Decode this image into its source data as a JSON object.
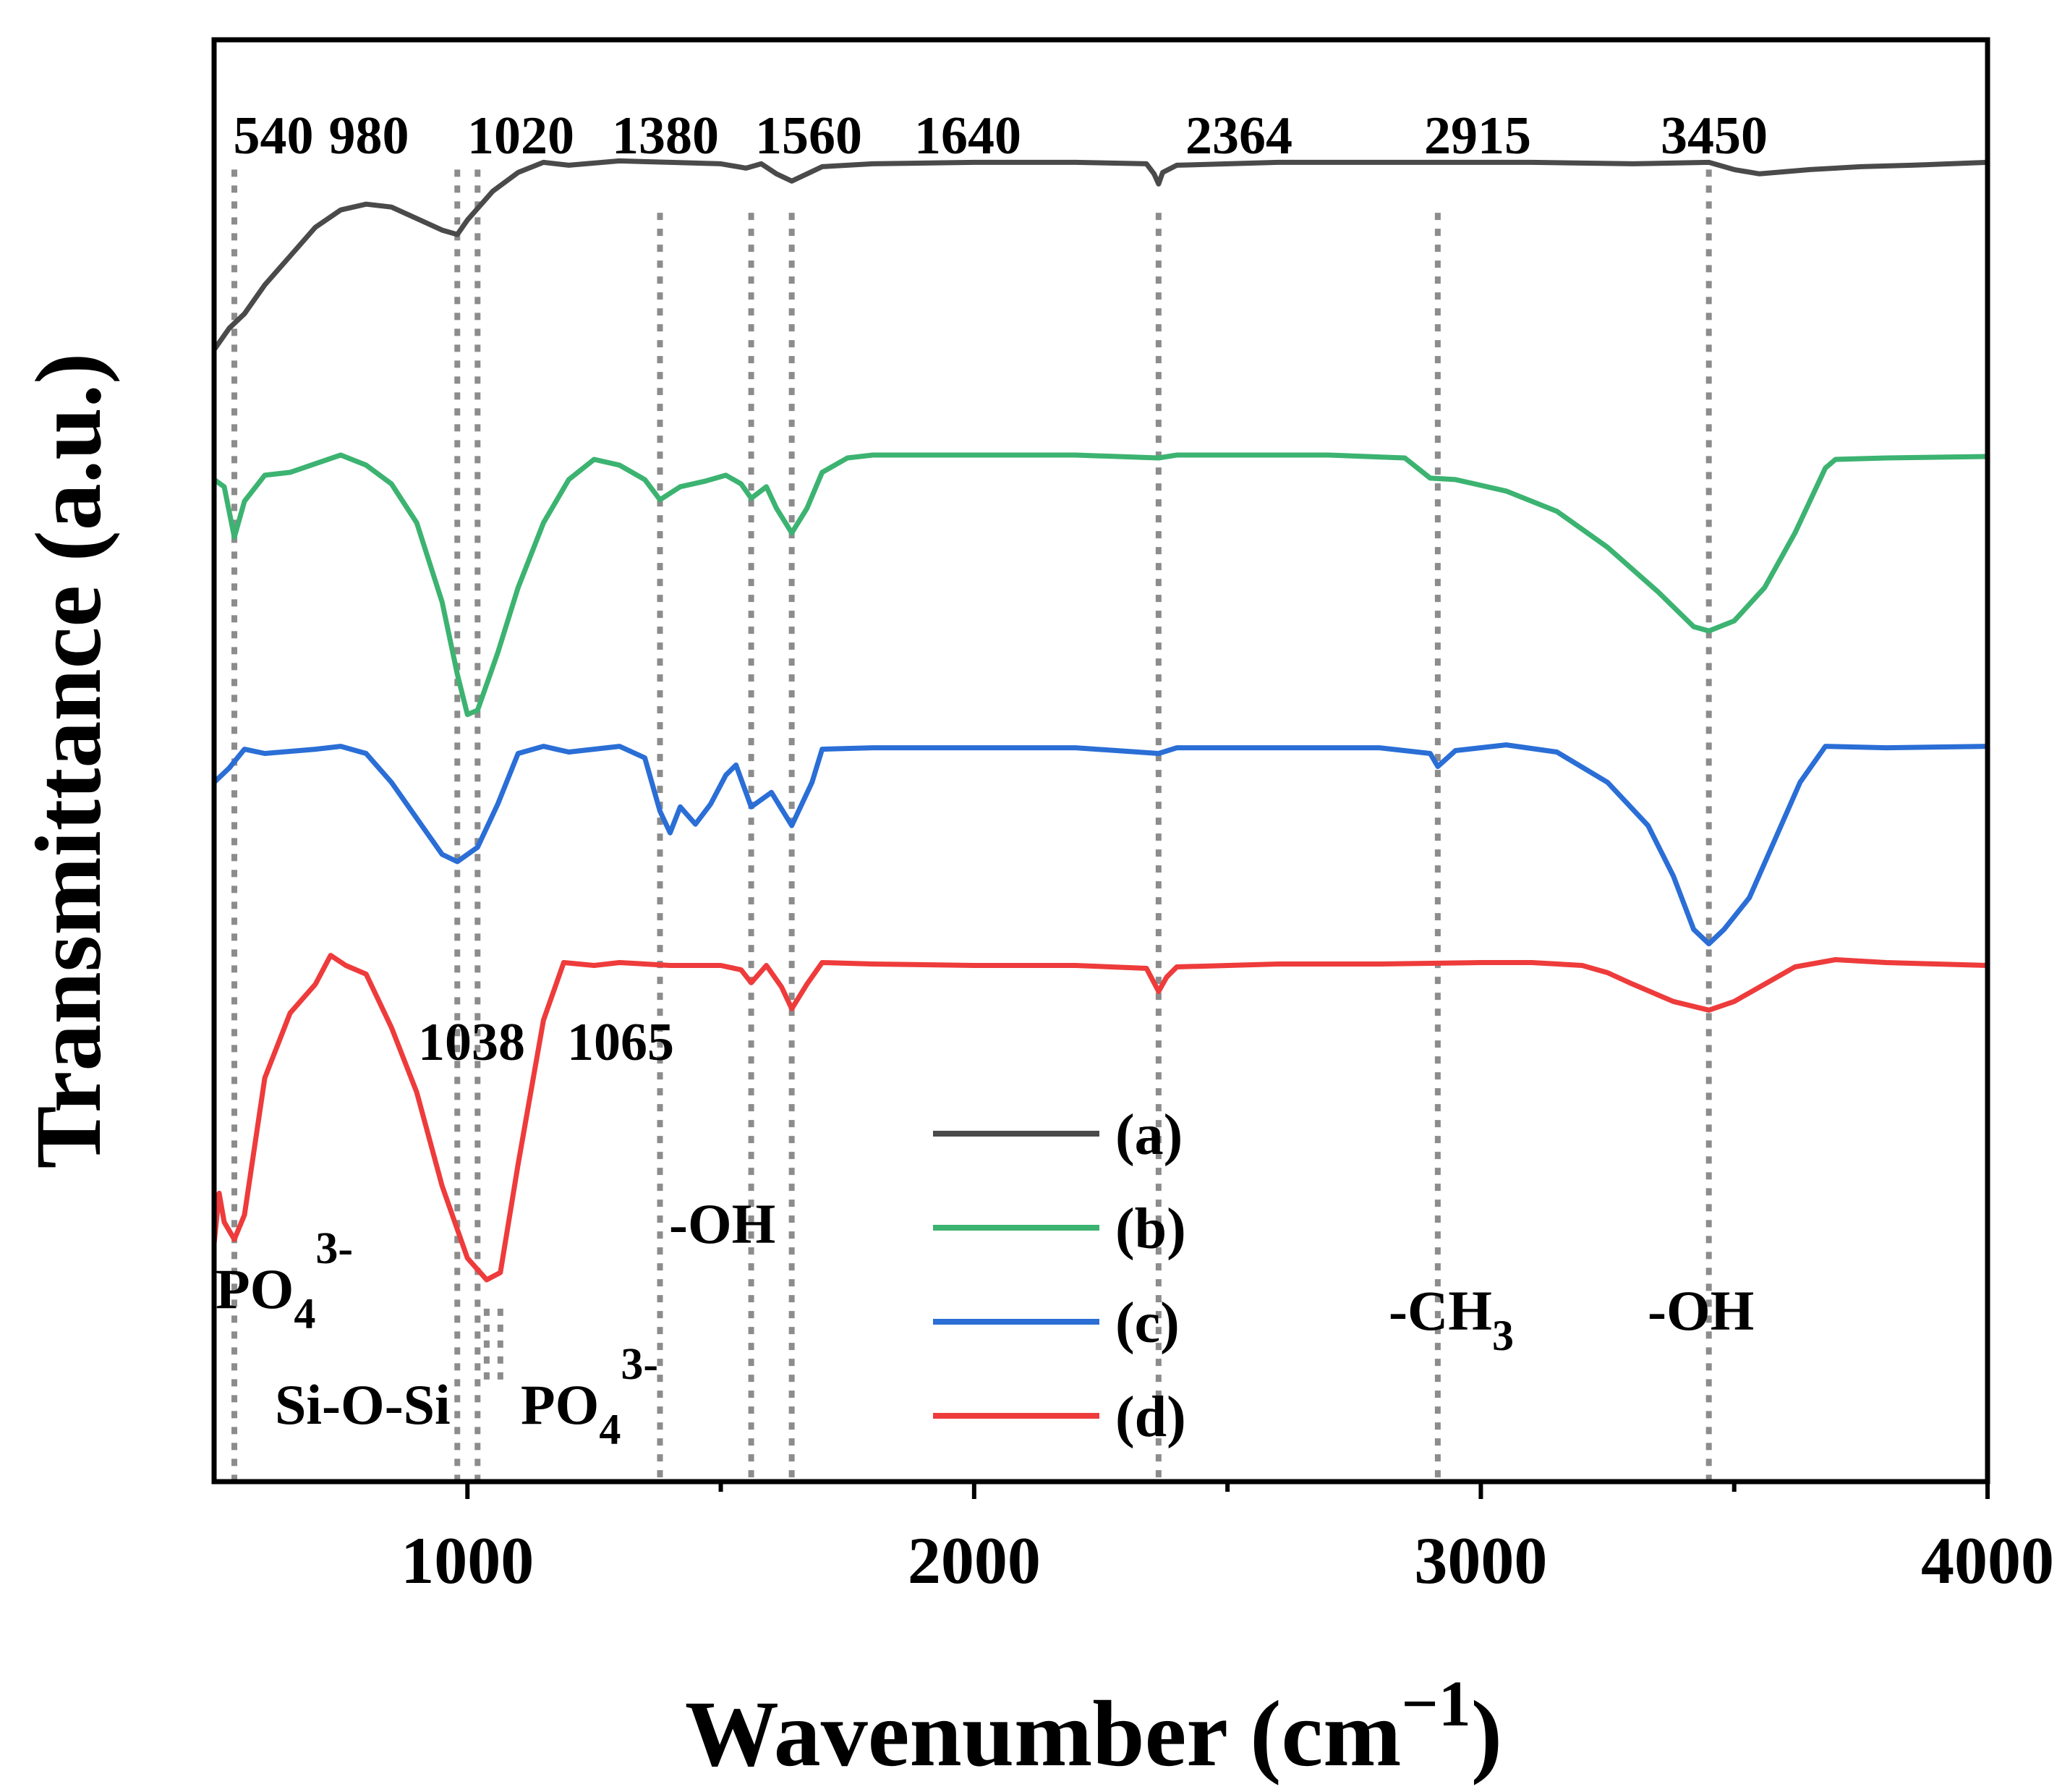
{
  "chart_data": {
    "type": "line",
    "title": "",
    "xlabel": "Wavenumber (cm",
    "xlabel_sup": "−1",
    "xlabel_close": ")",
    "ylabel": "Transmittance (a.u.)",
    "xlim": [
      500,
      4000
    ],
    "ylim": [
      0,
      100
    ],
    "x_ticks": [
      1000,
      2000,
      3000,
      4000
    ],
    "x_minor_ticks": [
      1500,
      2500,
      3500
    ],
    "y_ticks_shown": false,
    "peak_markers": [
      {
        "wavenumber": 540,
        "label": "540",
        "y_top": 91
      },
      {
        "wavenumber": 980,
        "label": "980",
        "y_top": 91
      },
      {
        "wavenumber": 1020,
        "label": "1020",
        "y_top": 91
      },
      {
        "wavenumber": 1380,
        "label": "1380",
        "y_top": 88
      },
      {
        "wavenumber": 1560,
        "label": "1560",
        "y_top": 88
      },
      {
        "wavenumber": 1640,
        "label": "1640",
        "y_top": 88
      },
      {
        "wavenumber": 2364,
        "label": "2364",
        "y_top": 88
      },
      {
        "wavenumber": 2915,
        "label": "2915",
        "y_top": 88
      },
      {
        "wavenumber": 3450,
        "label": "3450",
        "y_top": 91
      }
    ],
    "lower_markers": [
      {
        "wavenumber": 1038,
        "label": "1038"
      },
      {
        "wavenumber": 1065,
        "label": "1065"
      }
    ],
    "group_labels": [
      {
        "text": "PO",
        "sub": "4",
        "sup": "3-",
        "wavenumber": 500,
        "y": 15.5
      },
      {
        "text": "Si-O-Si",
        "wavenumber": 620,
        "y": 5.2
      },
      {
        "text": "PO",
        "sub": "4",
        "sup": "3-",
        "wavenumber": 1120,
        "y": 5.2
      },
      {
        "text": "-OH",
        "wavenumber": 1400,
        "y": 19.3
      },
      {
        "text": "-CH",
        "sub": "3",
        "wavenumber": 2880,
        "y": 11.2
      },
      {
        "text": "-OH",
        "wavenumber": 3390,
        "y": 11.2
      }
    ],
    "legend": {
      "placement": "center",
      "entries": [
        "(a)",
        "(b)",
        "(c)",
        "(d)"
      ]
    },
    "series": [
      {
        "name": "(a)",
        "color": "#4a4a4a",
        "points": [
          [
            500,
            78.5
          ],
          [
            530,
            80
          ],
          [
            560,
            81
          ],
          [
            600,
            83
          ],
          [
            650,
            85
          ],
          [
            700,
            87
          ],
          [
            750,
            88.2
          ],
          [
            800,
            88.6
          ],
          [
            850,
            88.4
          ],
          [
            900,
            87.6
          ],
          [
            950,
            86.8
          ],
          [
            980,
            86.5
          ],
          [
            1000,
            87.5
          ],
          [
            1050,
            89.5
          ],
          [
            1100,
            90.8
          ],
          [
            1150,
            91.5
          ],
          [
            1200,
            91.3
          ],
          [
            1300,
            91.6
          ],
          [
            1400,
            91.5
          ],
          [
            1500,
            91.4
          ],
          [
            1550,
            91.1
          ],
          [
            1580,
            91.4
          ],
          [
            1610,
            90.7
          ],
          [
            1640,
            90.2
          ],
          [
            1700,
            91.2
          ],
          [
            1800,
            91.4
          ],
          [
            2000,
            91.5
          ],
          [
            2200,
            91.5
          ],
          [
            2340,
            91.4
          ],
          [
            2355,
            90.7
          ],
          [
            2364,
            90.0
          ],
          [
            2372,
            90.8
          ],
          [
            2400,
            91.3
          ],
          [
            2600,
            91.5
          ],
          [
            2900,
            91.5
          ],
          [
            3100,
            91.5
          ],
          [
            3300,
            91.4
          ],
          [
            3450,
            91.5
          ],
          [
            3500,
            91.0
          ],
          [
            3550,
            90.7
          ],
          [
            3650,
            91.0
          ],
          [
            3750,
            91.2
          ],
          [
            3850,
            91.3
          ],
          [
            4000,
            91.5
          ]
        ]
      },
      {
        "name": "(b)",
        "color": "#3cb371",
        "points": [
          [
            500,
            69.5
          ],
          [
            520,
            69
          ],
          [
            540,
            65.5
          ],
          [
            560,
            68
          ],
          [
            600,
            69.8
          ],
          [
            650,
            70
          ],
          [
            700,
            70.6
          ],
          [
            750,
            71.2
          ],
          [
            800,
            70.5
          ],
          [
            850,
            69.2
          ],
          [
            900,
            66.5
          ],
          [
            950,
            61
          ],
          [
            980,
            56
          ],
          [
            1000,
            53.2
          ],
          [
            1020,
            53.5
          ],
          [
            1060,
            57.5
          ],
          [
            1100,
            62
          ],
          [
            1150,
            66.5
          ],
          [
            1200,
            69.5
          ],
          [
            1250,
            70.9
          ],
          [
            1300,
            70.5
          ],
          [
            1350,
            69.5
          ],
          [
            1380,
            68.1
          ],
          [
            1420,
            69
          ],
          [
            1470,
            69.4
          ],
          [
            1510,
            69.8
          ],
          [
            1540,
            69.2
          ],
          [
            1560,
            68.2
          ],
          [
            1590,
            69.0
          ],
          [
            1610,
            67.5
          ],
          [
            1640,
            65.8
          ],
          [
            1670,
            67.5
          ],
          [
            1700,
            70.0
          ],
          [
            1750,
            71.0
          ],
          [
            1800,
            71.2
          ],
          [
            2000,
            71.2
          ],
          [
            2200,
            71.2
          ],
          [
            2364,
            71.0
          ],
          [
            2400,
            71.2
          ],
          [
            2700,
            71.2
          ],
          [
            2850,
            71.0
          ],
          [
            2900,
            69.6
          ],
          [
            2950,
            69.5
          ],
          [
            3050,
            68.7
          ],
          [
            3150,
            67.3
          ],
          [
            3250,
            64.8
          ],
          [
            3350,
            61.7
          ],
          [
            3420,
            59.3
          ],
          [
            3450,
            59.0
          ],
          [
            3500,
            59.7
          ],
          [
            3560,
            62
          ],
          [
            3620,
            65.8
          ],
          [
            3680,
            70.3
          ],
          [
            3700,
            70.9
          ],
          [
            3800,
            71.0
          ],
          [
            4000,
            71.1
          ]
        ]
      },
      {
        "name": "(c)",
        "color": "#2a6ed6",
        "points": [
          [
            500,
            48.5
          ],
          [
            530,
            49.5
          ],
          [
            560,
            50.8
          ],
          [
            600,
            50.5
          ],
          [
            700,
            50.8
          ],
          [
            750,
            51.0
          ],
          [
            800,
            50.5
          ],
          [
            850,
            48.5
          ],
          [
            900,
            46
          ],
          [
            950,
            43.5
          ],
          [
            980,
            43.0
          ],
          [
            1020,
            44.0
          ],
          [
            1060,
            47
          ],
          [
            1100,
            50.5
          ],
          [
            1150,
            51.0
          ],
          [
            1200,
            50.6
          ],
          [
            1300,
            51.0
          ],
          [
            1350,
            50.2
          ],
          [
            1380,
            46.5
          ],
          [
            1400,
            45.0
          ],
          [
            1420,
            46.8
          ],
          [
            1450,
            45.6
          ],
          [
            1480,
            47.0
          ],
          [
            1510,
            49.0
          ],
          [
            1530,
            49.7
          ],
          [
            1560,
            46.8
          ],
          [
            1600,
            47.8
          ],
          [
            1640,
            45.5
          ],
          [
            1680,
            48.5
          ],
          [
            1700,
            50.8
          ],
          [
            1800,
            50.9
          ],
          [
            2000,
            50.9
          ],
          [
            2200,
            50.9
          ],
          [
            2364,
            50.5
          ],
          [
            2400,
            50.9
          ],
          [
            2800,
            50.9
          ],
          [
            2900,
            50.5
          ],
          [
            2915,
            49.6
          ],
          [
            2950,
            50.7
          ],
          [
            3050,
            51.1
          ],
          [
            3150,
            50.6
          ],
          [
            3250,
            48.5
          ],
          [
            3330,
            45.5
          ],
          [
            3380,
            42.0
          ],
          [
            3420,
            38.3
          ],
          [
            3450,
            37.3
          ],
          [
            3480,
            38.3
          ],
          [
            3530,
            40.5
          ],
          [
            3580,
            44.5
          ],
          [
            3630,
            48.5
          ],
          [
            3680,
            51.0
          ],
          [
            3800,
            50.9
          ],
          [
            4000,
            51.0
          ]
        ]
      },
      {
        "name": "(d)",
        "color": "#ee3b3b",
        "points": [
          [
            500,
            16.5
          ],
          [
            510,
            20
          ],
          [
            520,
            18
          ],
          [
            540,
            16.8
          ],
          [
            560,
            18.5
          ],
          [
            600,
            28
          ],
          [
            650,
            32.5
          ],
          [
            700,
            34.5
          ],
          [
            730,
            36.5
          ],
          [
            760,
            35.8
          ],
          [
            800,
            35.2
          ],
          [
            850,
            31.5
          ],
          [
            900,
            27
          ],
          [
            950,
            20.5
          ],
          [
            1000,
            15.5
          ],
          [
            1038,
            14.0
          ],
          [
            1065,
            14.5
          ],
          [
            1100,
            22
          ],
          [
            1150,
            32
          ],
          [
            1190,
            36.0
          ],
          [
            1250,
            35.8
          ],
          [
            1300,
            36.0
          ],
          [
            1400,
            35.8
          ],
          [
            1500,
            35.8
          ],
          [
            1540,
            35.5
          ],
          [
            1560,
            34.6
          ],
          [
            1590,
            35.8
          ],
          [
            1620,
            34.3
          ],
          [
            1640,
            32.8
          ],
          [
            1670,
            34.5
          ],
          [
            1700,
            36.0
          ],
          [
            1800,
            35.9
          ],
          [
            2000,
            35.8
          ],
          [
            2200,
            35.8
          ],
          [
            2340,
            35.6
          ],
          [
            2364,
            34.0
          ],
          [
            2380,
            35.0
          ],
          [
            2400,
            35.7
          ],
          [
            2600,
            35.9
          ],
          [
            2800,
            35.9
          ],
          [
            3000,
            36.0
          ],
          [
            3100,
            36.0
          ],
          [
            3200,
            35.8
          ],
          [
            3250,
            35.3
          ],
          [
            3300,
            34.5
          ],
          [
            3380,
            33.3
          ],
          [
            3450,
            32.7
          ],
          [
            3500,
            33.3
          ],
          [
            3560,
            34.5
          ],
          [
            3620,
            35.7
          ],
          [
            3700,
            36.2
          ],
          [
            3800,
            36.0
          ],
          [
            3900,
            35.9
          ],
          [
            4000,
            35.8
          ]
        ]
      }
    ]
  }
}
